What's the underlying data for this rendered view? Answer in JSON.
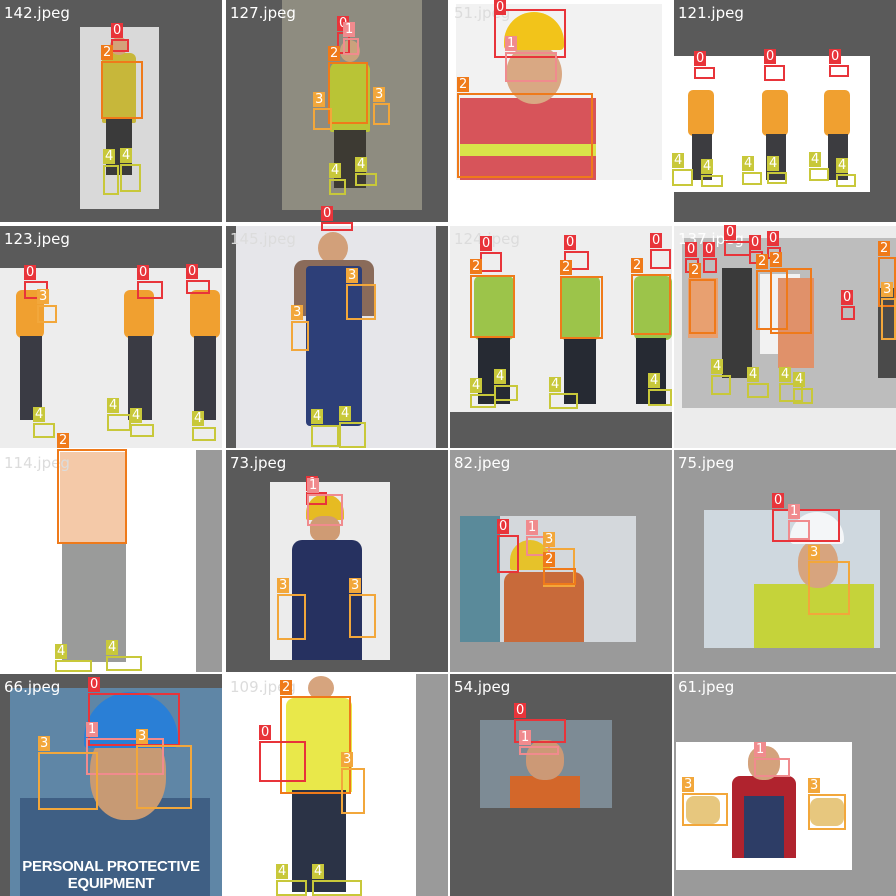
{
  "tiles": [
    {
      "name": "142.jpeg"
    },
    {
      "name": "127.jpeg"
    },
    {
      "name": "51.jpeg"
    },
    {
      "name": "121.jpeg"
    },
    {
      "name": "123.jpeg"
    },
    {
      "name": "145.jpeg"
    },
    {
      "name": "124.jpeg"
    },
    {
      "name": "137.jpeg"
    },
    {
      "name": "114.jpeg"
    },
    {
      "name": "73.jpeg"
    },
    {
      "name": "82.jpeg"
    },
    {
      "name": "75.jpeg"
    },
    {
      "name": "66.jpeg"
    },
    {
      "name": "109.jpeg"
    },
    {
      "name": "54.jpeg"
    },
    {
      "name": "61.jpeg"
    }
  ],
  "captions": {
    "ppe": "PERSONAL PROTECTIVE EQUIPMENT"
  },
  "class_colors": {
    "0": "#e8343a",
    "1": "#f08b8e",
    "2": "#ef7a1a",
    "3": "#f2a73b",
    "4": "#c8c83a"
  },
  "detections": [
    {
      "tile": 0,
      "cls": "0"
    },
    {
      "tile": 0,
      "cls": "2"
    },
    {
      "tile": 0,
      "cls": "4"
    },
    {
      "tile": 0,
      "cls": "4"
    },
    {
      "tile": 1,
      "cls": "0"
    },
    {
      "tile": 1,
      "cls": "1"
    },
    {
      "tile": 1,
      "cls": "2"
    },
    {
      "tile": 1,
      "cls": "3"
    },
    {
      "tile": 1,
      "cls": "3"
    },
    {
      "tile": 1,
      "cls": "4"
    },
    {
      "tile": 1,
      "cls": "4"
    },
    {
      "tile": 2,
      "cls": "0"
    },
    {
      "tile": 2,
      "cls": "1"
    },
    {
      "tile": 2,
      "cls": "2"
    },
    {
      "tile": 3,
      "cls": "0"
    },
    {
      "tile": 3,
      "cls": "0"
    },
    {
      "tile": 3,
      "cls": "0"
    },
    {
      "tile": 3,
      "cls": "4"
    },
    {
      "tile": 3,
      "cls": "4"
    },
    {
      "tile": 3,
      "cls": "4"
    },
    {
      "tile": 3,
      "cls": "4"
    },
    {
      "tile": 3,
      "cls": "4"
    },
    {
      "tile": 3,
      "cls": "4"
    },
    {
      "tile": 4,
      "cls": "0"
    },
    {
      "tile": 4,
      "cls": "0"
    },
    {
      "tile": 4,
      "cls": "0"
    },
    {
      "tile": 4,
      "cls": "3"
    },
    {
      "tile": 4,
      "cls": "4"
    },
    {
      "tile": 4,
      "cls": "4"
    },
    {
      "tile": 4,
      "cls": "4"
    },
    {
      "tile": 4,
      "cls": "4"
    },
    {
      "tile": 5,
      "cls": "0"
    },
    {
      "tile": 5,
      "cls": "3"
    },
    {
      "tile": 5,
      "cls": "3"
    },
    {
      "tile": 5,
      "cls": "4"
    },
    {
      "tile": 5,
      "cls": "4"
    },
    {
      "tile": 6,
      "cls": "0"
    },
    {
      "tile": 6,
      "cls": "0"
    },
    {
      "tile": 6,
      "cls": "0"
    },
    {
      "tile": 6,
      "cls": "2"
    },
    {
      "tile": 6,
      "cls": "2"
    },
    {
      "tile": 6,
      "cls": "2"
    },
    {
      "tile": 6,
      "cls": "4"
    },
    {
      "tile": 6,
      "cls": "4"
    },
    {
      "tile": 6,
      "cls": "4"
    },
    {
      "tile": 6,
      "cls": "4"
    },
    {
      "tile": 7,
      "cls": "0"
    },
    {
      "tile": 7,
      "cls": "0"
    },
    {
      "tile": 7,
      "cls": "0"
    },
    {
      "tile": 7,
      "cls": "0"
    },
    {
      "tile": 7,
      "cls": "0"
    },
    {
      "tile": 7,
      "cls": "0"
    },
    {
      "tile": 7,
      "cls": "2"
    },
    {
      "tile": 7,
      "cls": "2"
    },
    {
      "tile": 7,
      "cls": "2"
    },
    {
      "tile": 7,
      "cls": "2"
    },
    {
      "tile": 7,
      "cls": "3"
    },
    {
      "tile": 7,
      "cls": "4"
    },
    {
      "tile": 7,
      "cls": "4"
    },
    {
      "tile": 7,
      "cls": "4"
    },
    {
      "tile": 7,
      "cls": "4"
    },
    {
      "tile": 8,
      "cls": "2"
    },
    {
      "tile": 8,
      "cls": "4"
    },
    {
      "tile": 8,
      "cls": "4"
    },
    {
      "tile": 9,
      "cls": "0"
    },
    {
      "tile": 9,
      "cls": "1"
    },
    {
      "tile": 9,
      "cls": "3"
    },
    {
      "tile": 9,
      "cls": "3"
    },
    {
      "tile": 10,
      "cls": "0"
    },
    {
      "tile": 10,
      "cls": "1"
    },
    {
      "tile": 10,
      "cls": "3"
    },
    {
      "tile": 10,
      "cls": "2"
    },
    {
      "tile": 11,
      "cls": "0"
    },
    {
      "tile": 11,
      "cls": "1"
    },
    {
      "tile": 11,
      "cls": "3"
    },
    {
      "tile": 12,
      "cls": "0"
    },
    {
      "tile": 12,
      "cls": "1"
    },
    {
      "tile": 12,
      "cls": "3"
    },
    {
      "tile": 12,
      "cls": "3"
    },
    {
      "tile": 13,
      "cls": "2"
    },
    {
      "tile": 13,
      "cls": "0"
    },
    {
      "tile": 13,
      "cls": "3"
    },
    {
      "tile": 13,
      "cls": "4"
    },
    {
      "tile": 13,
      "cls": "4"
    },
    {
      "tile": 14,
      "cls": "0"
    },
    {
      "tile": 14,
      "cls": "1"
    },
    {
      "tile": 15,
      "cls": "1"
    },
    {
      "tile": 15,
      "cls": "3"
    },
    {
      "tile": 15,
      "cls": "3"
    }
  ]
}
